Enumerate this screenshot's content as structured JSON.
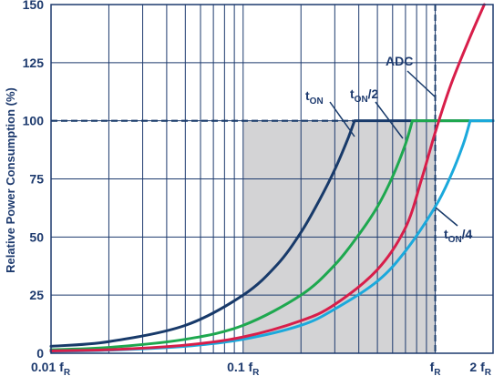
{
  "chart_data": {
    "type": "line",
    "title": "",
    "ylabel": "Relative Power Consumption (%)",
    "xlabel": "",
    "x_scale": "log",
    "x_range": [
      0.01,
      2
    ],
    "ylim": [
      0,
      150
    ],
    "grid": true,
    "y_ticks": [
      "0",
      "25",
      "50",
      "75",
      "100",
      "125",
      "150"
    ],
    "y_tick_values": [
      0,
      25,
      50,
      75,
      100,
      125,
      150
    ],
    "x_ticks": [
      {
        "value": 0.01,
        "main": "0.01 f",
        "sub": "R"
      },
      {
        "value": 0.1,
        "main": "0.1 f",
        "sub": "R"
      },
      {
        "value": 1,
        "main": "f",
        "sub": "R"
      },
      {
        "value": 2,
        "main": "2 f",
        "sub": "R"
      }
    ],
    "shaded_region": {
      "x": [
        0.1,
        1
      ],
      "y": [
        0,
        100
      ]
    },
    "reference_lines": {
      "y": 100,
      "x": 1
    },
    "series": [
      {
        "name": "ADC",
        "color": "#d81e4a",
        "x": [
          0.01,
          0.02,
          0.05,
          0.1,
          0.2,
          0.3,
          0.5,
          0.7,
          0.85,
          1.0,
          1.2,
          1.5,
          1.8
        ],
        "y": [
          1,
          1.5,
          3.5,
          7,
          14,
          21,
          36,
          54,
          75,
          95,
          115,
          135,
          150
        ]
      },
      {
        "name": "tON",
        "label_main": "t",
        "label_sub": "ON",
        "label_suffix": "",
        "color": "#183a6a",
        "x": [
          0.01,
          0.02,
          0.05,
          0.1,
          0.15,
          0.2,
          0.25,
          0.3,
          0.35,
          0.38,
          0.7,
          1.0,
          2.0
        ],
        "y": [
          3,
          5,
          12,
          25,
          38,
          52,
          66,
          79,
          92,
          100,
          100,
          100,
          100
        ]
      },
      {
        "name": "tON/2",
        "label_main": "t",
        "label_sub": "ON",
        "label_suffix": "/2",
        "color": "#1ea84f",
        "x": [
          0.01,
          0.02,
          0.05,
          0.1,
          0.2,
          0.3,
          0.4,
          0.5,
          0.6,
          0.7,
          0.76,
          1.0,
          2.0
        ],
        "y": [
          1.5,
          2.5,
          6,
          12,
          25,
          38,
          51,
          63,
          76,
          90,
          100,
          100,
          100
        ]
      },
      {
        "name": "tON/4",
        "label_main": "t",
        "label_sub": "ON",
        "label_suffix": "/4",
        "color": "#1ba9dc",
        "x": [
          0.01,
          0.02,
          0.05,
          0.1,
          0.2,
          0.3,
          0.5,
          0.7,
          1.0,
          1.2,
          1.4,
          1.52,
          2.0
        ],
        "y": [
          0.8,
          1.3,
          3,
          6,
          12,
          19,
          31,
          44,
          63,
          76,
          90,
          100,
          100
        ]
      }
    ]
  }
}
